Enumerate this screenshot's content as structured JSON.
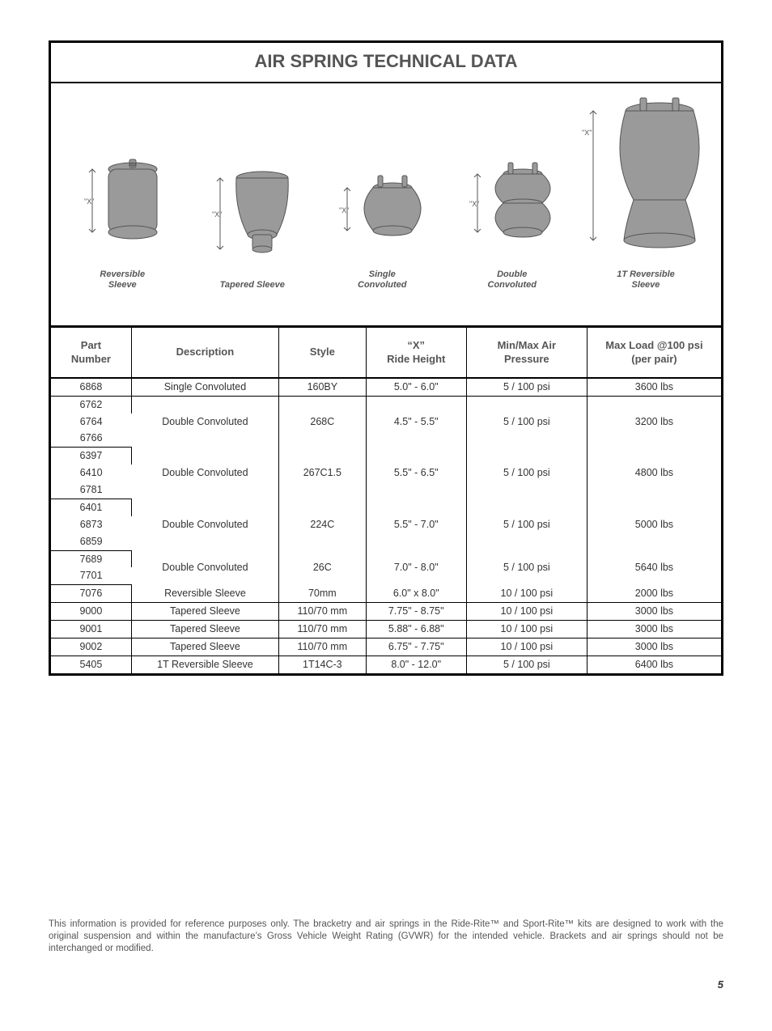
{
  "title": "AIR SPRING TECHNICAL DATA",
  "diagrams": [
    {
      "label": "Reversible\nSleeve"
    },
    {
      "label": "Tapered Sleeve"
    },
    {
      "label": "Single\nConvoluted"
    },
    {
      "label": "Double\nConvoluted"
    },
    {
      "label": "1T Reversible\nSleeve"
    }
  ],
  "table": {
    "headers": {
      "part": "Part\nNumber",
      "desc": "Description",
      "style": "Style",
      "ride": "“X”\nRide Height",
      "pressure": "Min/Max Air\nPressure",
      "load": "Max Load @100 psi\n(per pair)"
    },
    "groups": [
      {
        "parts": [
          "6868"
        ],
        "desc": "Single Convoluted",
        "style": "160BY",
        "ride": "5.0\" - 6.0\"",
        "pressure": "5 / 100 psi",
        "load": "3600 lbs"
      },
      {
        "parts": [
          "6762",
          "6764",
          "6766"
        ],
        "desc": "Double Convoluted",
        "style": "268C",
        "ride": "4.5\" - 5.5\"",
        "pressure": "5 / 100 psi",
        "load": "3200 lbs"
      },
      {
        "parts": [
          "6397",
          "6410",
          "6781"
        ],
        "desc": "Double Convoluted",
        "style": "267C1.5",
        "ride": "5.5\" - 6.5\"",
        "pressure": "5 / 100 psi",
        "load": "4800 lbs"
      },
      {
        "parts": [
          "6401",
          "6873",
          "6859"
        ],
        "desc": "Double Convoluted",
        "style": "224C",
        "ride": "5.5\" - 7.0\"",
        "pressure": "5 / 100 psi",
        "load": "5000 lbs"
      },
      {
        "parts": [
          "7689",
          "7701"
        ],
        "desc": "Double Convoluted",
        "style": "26C",
        "ride": "7.0\" - 8.0\"",
        "pressure": "5 / 100 psi",
        "load": "5640 lbs"
      },
      {
        "parts": [
          "7076"
        ],
        "desc": "Reversible Sleeve",
        "style": "70mm",
        "ride": "6.0\" x 8.0\"",
        "pressure": "10 / 100 psi",
        "load": "2000 lbs"
      },
      {
        "parts": [
          "9000"
        ],
        "desc": "Tapered Sleeve",
        "style": "110/70 mm",
        "ride": "7.75\" - 8.75\"",
        "pressure": "10 / 100 psi",
        "load": "3000 lbs"
      },
      {
        "parts": [
          "9001"
        ],
        "desc": "Tapered Sleeve",
        "style": "110/70 mm",
        "ride": "5.88\" - 6.88\"",
        "pressure": "10 / 100 psi",
        "load": "3000 lbs"
      },
      {
        "parts": [
          "9002"
        ],
        "desc": "Tapered Sleeve",
        "style": "110/70 mm",
        "ride": "6.75\" - 7.75\"",
        "pressure": "10 / 100 psi",
        "load": "3000 lbs"
      },
      {
        "parts": [
          "5405"
        ],
        "desc": "1T Reversible Sleeve",
        "style": "1T14C-3",
        "ride": "8.0\" - 12.0\"",
        "pressure": "5 / 100 psi",
        "load": "6400 lbs"
      }
    ]
  },
  "footnote": "This information is provided for reference purposes only. The bracketry and air springs in the Ride-Rite™ and Sport-Rite™ kits are designed to work with the original suspension and within the manufacture’s Gross Vehicle Weight Rating (GVWR) for the intended vehicle. Brackets and air springs should not be interchanged or modified.",
  "page_number": "5",
  "x_label": "\"X\"",
  "colors": {
    "shape_fill": "#9a9a9a",
    "shape_stroke": "#555555",
    "arrow": "#555555",
    "text": "#555555"
  }
}
